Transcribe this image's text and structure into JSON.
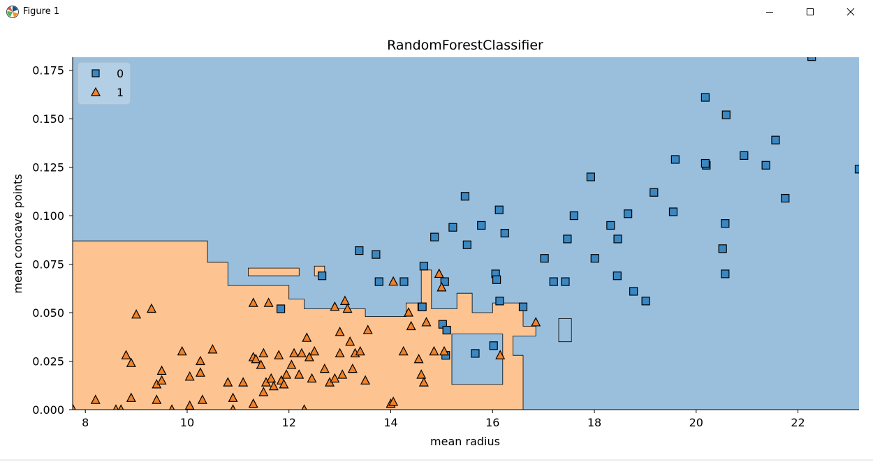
{
  "window": {
    "title": "Figure 1",
    "icon": "matplotlib-figure-icon",
    "controls": [
      "minimize-icon",
      "maximize-icon",
      "close-icon"
    ]
  },
  "chart_data": {
    "type": "scatter",
    "title": "RandomForestClassifier",
    "xlabel": "mean radius",
    "ylabel": "mean concave points",
    "xlim": [
      7.75,
      23.2
    ],
    "ylim": [
      0,
      0.1817
    ],
    "x_ticks": [
      "8",
      "10",
      "12",
      "14",
      "16",
      "18",
      "20",
      "22"
    ],
    "y_ticks": [
      "0.000",
      "0.025",
      "0.050",
      "0.075",
      "0.100",
      "0.125",
      "0.150",
      "0.175"
    ],
    "grid": false,
    "legend": {
      "position": "top-left",
      "entries": [
        "0",
        "1"
      ]
    },
    "colors": {
      "class_0_region": "#9abfdd",
      "class_1_region": "#fdc491",
      "class_0_marker": "#3a87c1",
      "class_1_marker": "#f0822a"
    },
    "decision_regions": {
      "class_1": [
        [
          [
            7.75,
            0
          ],
          [
            16.6,
            0
          ],
          [
            16.6,
            0.028
          ],
          [
            16.4,
            0.028
          ],
          [
            16.4,
            0.038
          ],
          [
            16.85,
            0.038
          ],
          [
            16.85,
            0.043
          ],
          [
            16.6,
            0.043
          ],
          [
            16.6,
            0.055
          ],
          [
            16.0,
            0.055
          ],
          [
            16.0,
            0.05
          ],
          [
            15.6,
            0.05
          ],
          [
            15.6,
            0.06
          ],
          [
            15.3,
            0.06
          ],
          [
            15.3,
            0.052
          ],
          [
            14.8,
            0.052
          ],
          [
            14.8,
            0.072
          ],
          [
            14.6,
            0.072
          ],
          [
            14.6,
            0.055
          ],
          [
            14.3,
            0.055
          ],
          [
            14.3,
            0.048
          ],
          [
            13.5,
            0.048
          ],
          [
            13.5,
            0.052
          ],
          [
            12.3,
            0.052
          ],
          [
            12.3,
            0.057
          ],
          [
            12.0,
            0.057
          ],
          [
            12.0,
            0.064
          ],
          [
            10.8,
            0.064
          ],
          [
            10.8,
            0.076
          ],
          [
            10.4,
            0.076
          ],
          [
            10.4,
            0.087
          ],
          [
            7.75,
            0.087
          ]
        ],
        [
          [
            11.2,
            0.069
          ],
          [
            12.2,
            0.069
          ],
          [
            12.2,
            0.073
          ],
          [
            11.2,
            0.073
          ]
        ],
        [
          [
            12.5,
            0.069
          ],
          [
            12.7,
            0.069
          ],
          [
            12.7,
            0.074
          ],
          [
            12.5,
            0.074
          ]
        ]
      ],
      "class_0_holes": [
        [
          [
            15.2,
            0.013
          ],
          [
            16.2,
            0.013
          ],
          [
            16.2,
            0.039
          ],
          [
            15.2,
            0.039
          ]
        ],
        [
          [
            17.3,
            0.035
          ],
          [
            17.55,
            0.035
          ],
          [
            17.55,
            0.047
          ],
          [
            17.3,
            0.047
          ]
        ]
      ]
    },
    "series": [
      {
        "name": "0",
        "marker": "square",
        "x": [
          22.27,
          20.18,
          20.59,
          20.94,
          21.56,
          19.59,
          20.2,
          20.18,
          21.37,
          23.2,
          17.93,
          19.17,
          21.75,
          15.46,
          16.13,
          15.78,
          17.6,
          18.66,
          19.55,
          20.57,
          15.22,
          16.24,
          14.86,
          17.47,
          15.5,
          18.32,
          18.46,
          13.38,
          13.71,
          20.52,
          17.02,
          16.06,
          18.01,
          20.57,
          12.65,
          14.65,
          14.61,
          18.45,
          13.77,
          14.26,
          16.08,
          15.06,
          17.2,
          17.43,
          18.77,
          19.01,
          16.14,
          16.6,
          11.84,
          14.62,
          15.02,
          15.1,
          16.02,
          15.66,
          15.08
        ],
        "y": [
          0.182,
          0.161,
          0.152,
          0.131,
          0.139,
          0.129,
          0.126,
          0.127,
          0.126,
          0.124,
          0.12,
          0.112,
          0.109,
          0.11,
          0.103,
          0.095,
          0.1,
          0.101,
          0.102,
          0.096,
          0.094,
          0.091,
          0.089,
          0.088,
          0.085,
          0.095,
          0.088,
          0.082,
          0.08,
          0.083,
          0.078,
          0.07,
          0.078,
          0.07,
          0.069,
          0.074,
          0.053,
          0.069,
          0.066,
          0.066,
          0.067,
          0.066,
          0.066,
          0.066,
          0.061,
          0.056,
          0.056,
          0.053,
          0.052,
          0.053,
          0.044,
          0.041,
          0.033,
          0.029,
          0.028
        ]
      },
      {
        "name": "1",
        "marker": "triangle",
        "x": [
          7.76,
          8.2,
          8.6,
          8.7,
          8.8,
          8.9,
          8.9,
          9.0,
          9.3,
          9.4,
          9.4,
          9.5,
          9.5,
          9.7,
          9.9,
          10.05,
          10.05,
          10.26,
          10.26,
          10.3,
          10.5,
          10.8,
          10.9,
          10.9,
          11.1,
          11.3,
          11.3,
          11.3,
          11.35,
          11.45,
          11.5,
          11.5,
          11.55,
          11.6,
          11.65,
          11.7,
          11.8,
          11.85,
          11.9,
          11.95,
          12.05,
          12.1,
          12.2,
          12.25,
          12.3,
          12.35,
          12.4,
          12.45,
          12.5,
          12.7,
          12.8,
          12.9,
          12.9,
          13.0,
          13.0,
          13.05,
          13.1,
          13.15,
          13.2,
          13.25,
          13.3,
          13.4,
          13.5,
          13.55,
          14.0,
          14.05,
          14.05,
          14.25,
          14.35,
          14.4,
          14.55,
          14.6,
          14.65,
          14.7,
          14.85,
          14.95,
          15.0,
          15.05,
          16.15,
          16.85
        ],
        "y": [
          0.0,
          0.005,
          0.0,
          0.0,
          0.028,
          0.024,
          0.006,
          0.049,
          0.052,
          0.005,
          0.013,
          0.015,
          0.02,
          0.0,
          0.03,
          0.002,
          0.017,
          0.025,
          0.019,
          0.005,
          0.031,
          0.014,
          0.0,
          0.006,
          0.014,
          0.055,
          0.027,
          0.003,
          0.026,
          0.023,
          0.029,
          0.009,
          0.014,
          0.055,
          0.016,
          0.012,
          0.028,
          0.015,
          0.013,
          0.018,
          0.023,
          0.029,
          0.018,
          0.029,
          0.0,
          0.037,
          0.027,
          0.016,
          0.03,
          0.021,
          0.014,
          0.053,
          0.016,
          0.04,
          0.029,
          0.018,
          0.056,
          0.052,
          0.035,
          0.021,
          0.029,
          0.03,
          0.015,
          0.041,
          0.003,
          0.004,
          0.066,
          0.03,
          0.05,
          0.043,
          0.026,
          0.018,
          0.014,
          0.045,
          0.03,
          0.07,
          0.063,
          0.03,
          0.028,
          0.045
        ]
      }
    ]
  }
}
